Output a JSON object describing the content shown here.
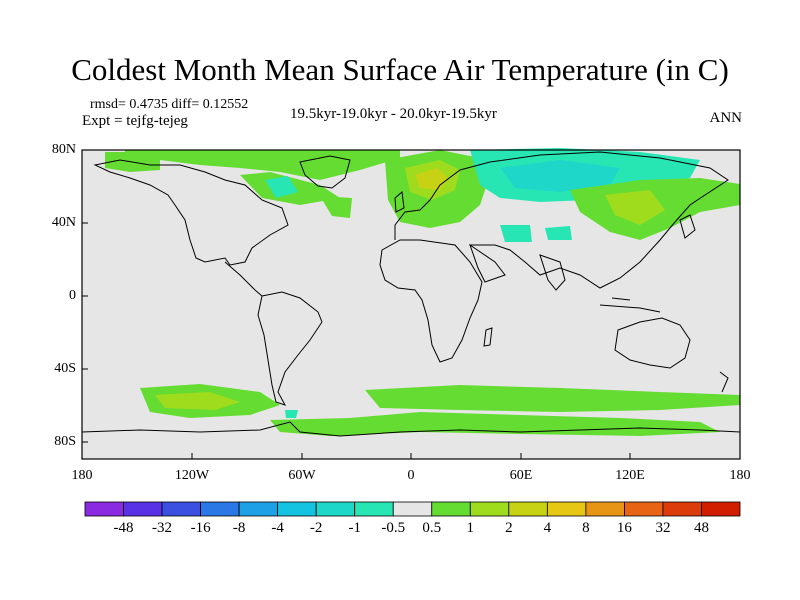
{
  "title": "Coldest Month Mean Surface Air Temperature (in C)",
  "stats": "rmsd= 0.4735 diff= 0.12552",
  "experiment": "Expt = tejfg-tejeg",
  "period": "19.5kyr-19.0kyr - 20.0kyr-19.5kyr",
  "season": "ANN",
  "map": {
    "projection": "cylindrical equidistant",
    "lon_range": [
      -180,
      180
    ],
    "lat_range": [
      -90,
      90
    ],
    "background_color": "#e6e6e6",
    "coastline_color": "#000000",
    "lat_ticks": [
      {
        "value": 80,
        "label": "80N"
      },
      {
        "value": 40,
        "label": "40N"
      },
      {
        "value": 0,
        "label": "0"
      },
      {
        "value": -40,
        "label": "40S"
      },
      {
        "value": -80,
        "label": "80S"
      }
    ],
    "lon_ticks": [
      {
        "value": -180,
        "label": "180"
      },
      {
        "value": -120,
        "label": "120W"
      },
      {
        "value": -60,
        "label": "60W"
      },
      {
        "value": 0,
        "label": "0"
      },
      {
        "value": 60,
        "label": "60E"
      },
      {
        "value": 120,
        "label": "120E"
      },
      {
        "value": 180,
        "label": "180"
      }
    ]
  },
  "colorbar": {
    "boundaries": [
      "-48",
      "-32",
      "-16",
      "-8",
      "-4",
      "-2",
      "-1",
      "-0.5",
      "0.5",
      "1",
      "2",
      "4",
      "8",
      "16",
      "32",
      "48"
    ],
    "colors": [
      "#8a2be2",
      "#5a32e6",
      "#3b4fe0",
      "#2a78e6",
      "#1ea0e6",
      "#14c3e0",
      "#1ed7c8",
      "#28e6b4",
      "#e6e6e6",
      "#64dc32",
      "#a0dc1e",
      "#c8d214",
      "#e6c814",
      "#e69614",
      "#e66414",
      "#dc3c0a",
      "#d21e00"
    ]
  }
}
